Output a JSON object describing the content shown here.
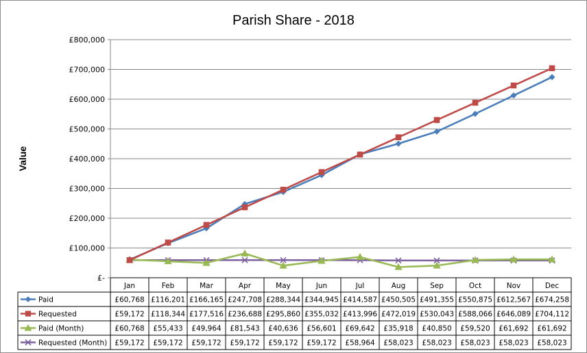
{
  "chart_data": {
    "type": "line",
    "title": "Parish Share - 2018",
    "ylabel": "Value",
    "xlabel": "",
    "ylim": [
      0,
      800000
    ],
    "y_ticks": [
      0,
      100000,
      200000,
      300000,
      400000,
      500000,
      600000,
      700000,
      800000
    ],
    "y_tick_labels": [
      "£-",
      "£100,000",
      "£200,000",
      "£300,000",
      "£400,000",
      "£500,000",
      "£600,000",
      "£700,000",
      "£800,000"
    ],
    "grid": true,
    "legend": "data-table-below",
    "categories": [
      "Jan",
      "Feb",
      "Mar",
      "Apr",
      "May",
      "Jun",
      "Jul",
      "Aug",
      "Sep",
      "Oct",
      "Nov",
      "Dec"
    ],
    "series": [
      {
        "name": "Paid",
        "color": "#4A7EBB",
        "marker": "diamond",
        "values": [
          60768,
          116201,
          166165,
          247708,
          288344,
          344945,
          414587,
          450505,
          491355,
          550875,
          612567,
          674258
        ],
        "labels": [
          "£60,768",
          "£116,201",
          "£166,165",
          "£247,708",
          "£288,344",
          "£344,945",
          "£414,587",
          "£450,505",
          "£491,355",
          "£550,875",
          "£612,567",
          "£674,258"
        ]
      },
      {
        "name": "Requested",
        "color": "#BE4B48",
        "marker": "square",
        "values": [
          59172,
          118344,
          177516,
          236688,
          295860,
          355032,
          413996,
          472019,
          530043,
          588066,
          646089,
          704112
        ],
        "labels": [
          "£59,172",
          "£118,344",
          "£177,516",
          "£236,688",
          "£295,860",
          "£355,032",
          "£413,996",
          "£472,019",
          "£530,043",
          "£588,066",
          "£646,089",
          "£704,112"
        ]
      },
      {
        "name": "Paid (Month)",
        "color": "#98B954",
        "marker": "triangle",
        "values": [
          60768,
          55433,
          49964,
          81543,
          40636,
          56601,
          69642,
          35918,
          40850,
          59520,
          61692,
          61692
        ],
        "labels": [
          "£60,768",
          "£55,433",
          "£49,964",
          "£81,543",
          "£40,636",
          "£56,601",
          "£69,642",
          "£35,918",
          "£40,850",
          "£59,520",
          "£61,692",
          "£61,692"
        ]
      },
      {
        "name": "Requested (Month)",
        "color": "#7D60A0",
        "marker": "x",
        "values": [
          59172,
          59172,
          59172,
          59172,
          59172,
          59172,
          58964,
          58023,
          58023,
          58023,
          58023,
          58023
        ],
        "labels": [
          "£59,172",
          "£59,172",
          "£59,172",
          "£59,172",
          "£59,172",
          "£59,172",
          "£58,964",
          "£58,023",
          "£58,023",
          "£58,023",
          "£58,023",
          "£58,023"
        ]
      }
    ]
  }
}
